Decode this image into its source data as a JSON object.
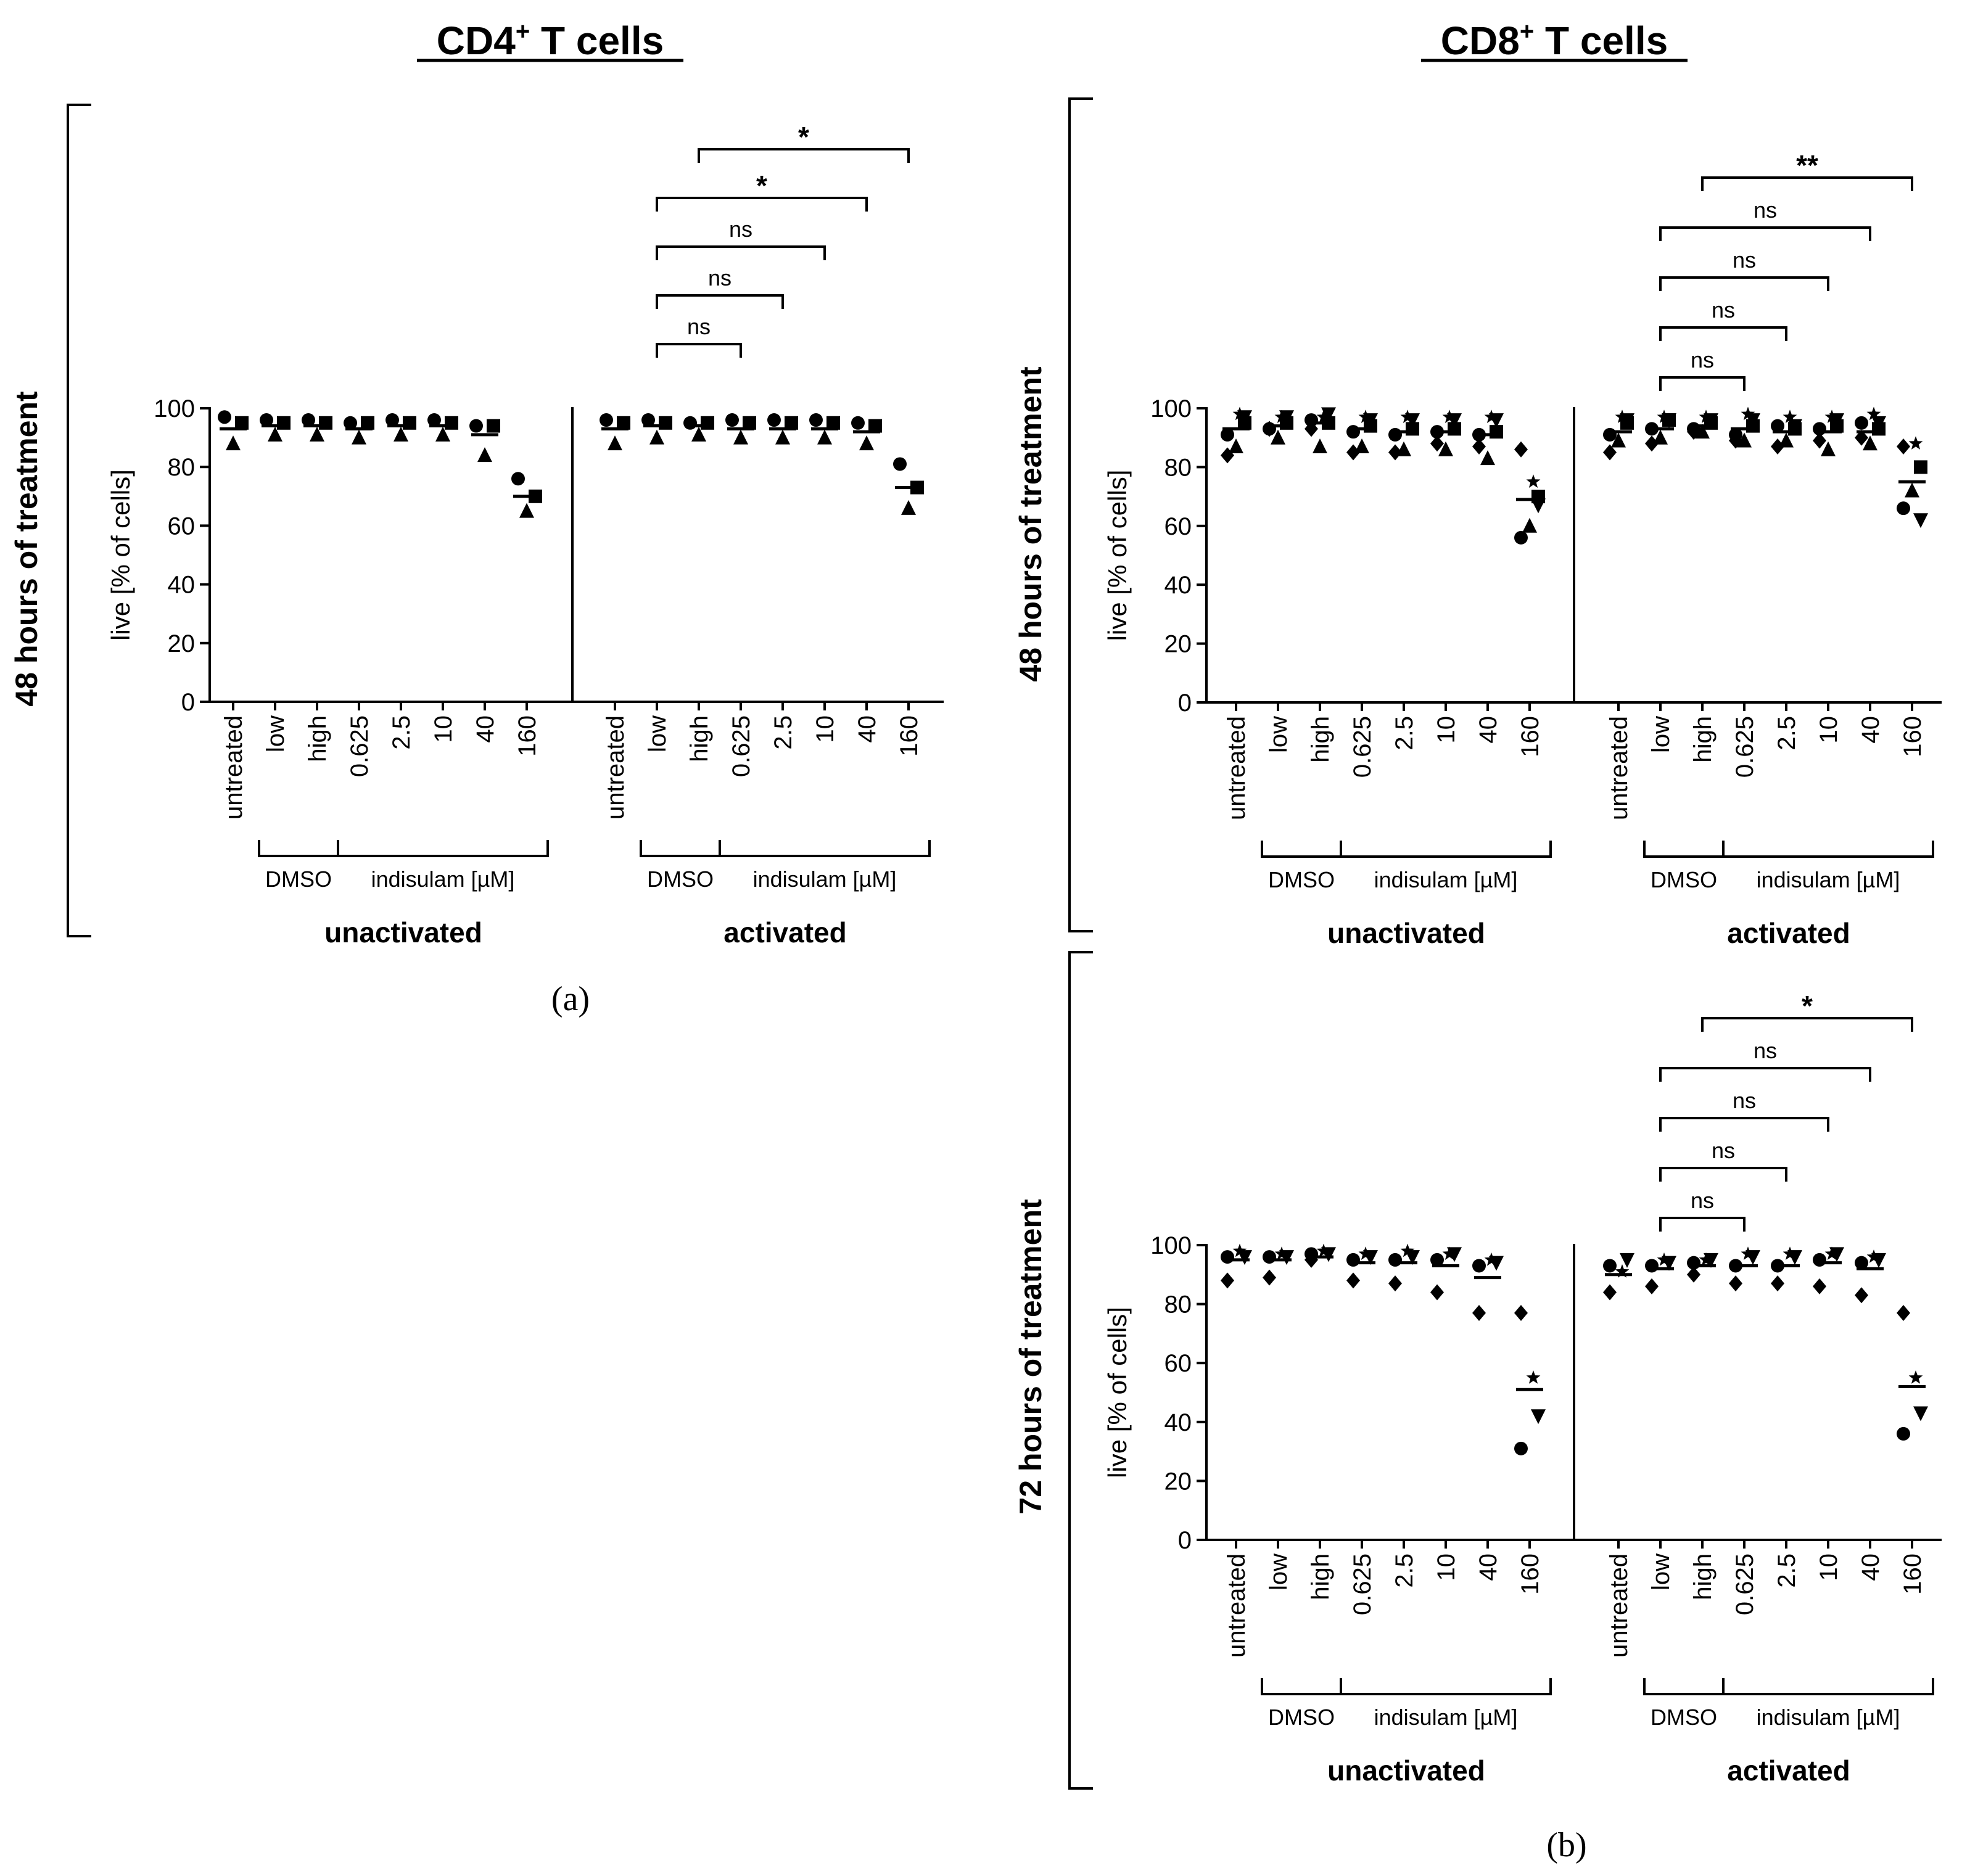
{
  "figure": {
    "colors": {
      "ink": "#000000",
      "background": "#ffffff"
    },
    "column_titles": [
      {
        "main": "CD4",
        "sup": "+",
        "rest": " T cells"
      },
      {
        "main": "CD8",
        "sup": "+",
        "rest": " T cells"
      }
    ],
    "panel_labels": [
      "(a)",
      "(b)"
    ],
    "row_labels": [
      "48 hours of treatment",
      "48 hours of treatment",
      "72 hours of treatment"
    ]
  },
  "chart_data": [
    {
      "id": "cd4-48h",
      "type": "scatter",
      "title": "CD4+ T cells",
      "time_label": "48 hours of treatment",
      "ylabel": "live [% of cells]",
      "ylim": [
        0,
        100
      ],
      "yticks": [
        "0",
        "20",
        "40",
        "60",
        "80",
        "100"
      ],
      "categories": [
        "untreated",
        "low",
        "high",
        "0.625",
        "2.5",
        "10",
        "40",
        "160"
      ],
      "bracket_labels": {
        "dmso": "DMSO",
        "indisulam": "indisulam [µM]"
      },
      "groups": [
        {
          "name": "unactivated",
          "series": [
            {
              "name": "circle",
              "values": [
                97,
                96,
                96,
                95,
                96,
                96,
                94,
                76
              ]
            },
            {
              "name": "square",
              "values": [
                95,
                95,
                95,
                95,
                95,
                95,
                94,
                70
              ]
            },
            {
              "name": "triangle",
              "values": [
                88,
                91,
                91,
                90,
                91,
                91,
                84,
                65
              ]
            }
          ],
          "means": [
            93,
            94,
            94,
            93,
            94,
            94,
            91,
            70
          ]
        },
        {
          "name": "activated",
          "series": [
            {
              "name": "circle",
              "values": [
                96,
                96,
                95,
                96,
                96,
                96,
                95,
                81
              ]
            },
            {
              "name": "square",
              "values": [
                95,
                95,
                95,
                95,
                95,
                95,
                94,
                73
              ]
            },
            {
              "name": "triangle",
              "values": [
                88,
                90,
                91,
                90,
                90,
                90,
                88,
                66
              ]
            }
          ],
          "means": [
            93,
            94,
            94,
            93,
            93,
            93,
            92,
            73
          ]
        }
      ],
      "comparisons": [
        {
          "from": "low",
          "to": "0.625",
          "label": "ns"
        },
        {
          "from": "low",
          "to": "2.5",
          "label": "ns"
        },
        {
          "from": "low",
          "to": "10",
          "label": "ns"
        },
        {
          "from": "low",
          "to": "40",
          "label": "*"
        },
        {
          "from": "high",
          "to": "160",
          "label": "*"
        }
      ]
    },
    {
      "id": "cd8-48h",
      "type": "scatter",
      "title": "CD8+ T cells",
      "time_label": "48 hours of treatment",
      "ylabel": "live [% of cells]",
      "ylim": [
        0,
        100
      ],
      "yticks": [
        "0",
        "20",
        "40",
        "60",
        "80",
        "100"
      ],
      "categories": [
        "untreated",
        "low",
        "high",
        "0.625",
        "2.5",
        "10",
        "40",
        "160"
      ],
      "bracket_labels": {
        "dmso": "DMSO",
        "indisulam": "indisulam [µM]"
      },
      "groups": [
        {
          "name": "unactivated",
          "series": [
            {
              "name": "circle",
              "values": [
                91,
                93,
                96,
                92,
                91,
                92,
                91,
                56
              ]
            },
            {
              "name": "square",
              "values": [
                95,
                95,
                95,
                94,
                93,
                93,
                92,
                70
              ]
            },
            {
              "name": "triangle",
              "values": [
                87,
                90,
                87,
                87,
                86,
                86,
                83,
                60
              ]
            },
            {
              "name": "triangle-down",
              "values": [
                97,
                97,
                98,
                96,
                96,
                96,
                96,
                67
              ]
            },
            {
              "name": "diamond",
              "values": [
                84,
                93,
                93,
                85,
                85,
                88,
                87,
                86
              ]
            },
            {
              "name": "star",
              "values": [
                98,
                97,
                97,
                97,
                97,
                97,
                97,
                75
              ]
            }
          ],
          "means": [
            93,
            94,
            95,
            93,
            92,
            92,
            91,
            69
          ]
        },
        {
          "name": "activated",
          "series": [
            {
              "name": "circle",
              "values": [
                91,
                93,
                93,
                91,
                94,
                93,
                95,
                66
              ]
            },
            {
              "name": "square",
              "values": [
                95,
                96,
                95,
                94,
                93,
                94,
                93,
                80
              ]
            },
            {
              "name": "triangle",
              "values": [
                89,
                90,
                92,
                89,
                89,
                86,
                88,
                72
              ]
            },
            {
              "name": "triangle-down",
              "values": [
                96,
                96,
                96,
                96,
                94,
                96,
                95,
                62
              ]
            },
            {
              "name": "diamond",
              "values": [
                85,
                88,
                92,
                89,
                87,
                89,
                90,
                87
              ]
            },
            {
              "name": "star",
              "values": [
                97,
                97,
                97,
                98,
                97,
                97,
                98,
                88
              ]
            }
          ],
          "means": [
            92,
            93,
            94,
            93,
            92,
            92,
            92,
            75
          ]
        }
      ],
      "comparisons": [
        {
          "from": "low",
          "to": "0.625",
          "label": "ns"
        },
        {
          "from": "low",
          "to": "2.5",
          "label": "ns"
        },
        {
          "from": "low",
          "to": "10",
          "label": "ns"
        },
        {
          "from": "low",
          "to": "40",
          "label": "ns"
        },
        {
          "from": "high",
          "to": "160",
          "label": "**"
        }
      ]
    },
    {
      "id": "cd8-72h",
      "type": "scatter",
      "title": "CD8+ T cells",
      "time_label": "72 hours of treatment",
      "ylabel": "live [% of cells]",
      "ylim": [
        0,
        100
      ],
      "yticks": [
        "0",
        "20",
        "40",
        "60",
        "80",
        "100"
      ],
      "categories": [
        "untreated",
        "low",
        "high",
        "0.625",
        "2.5",
        "10",
        "40",
        "160"
      ],
      "bracket_labels": {
        "dmso": "DMSO",
        "indisulam": "indisulam [µM]"
      },
      "groups": [
        {
          "name": "unactivated",
          "series": [
            {
              "name": "circle",
              "values": [
                96,
                96,
                97,
                95,
                95,
                95,
                93,
                31
              ]
            },
            {
              "name": "triangle-down",
              "values": [
                96,
                96,
                97,
                96,
                96,
                97,
                94,
                42
              ]
            },
            {
              "name": "diamond",
              "values": [
                88,
                89,
                95,
                88,
                87,
                84,
                77,
                77
              ]
            },
            {
              "name": "star",
              "values": [
                98,
                97,
                98,
                97,
                98,
                97,
                95,
                55
              ]
            }
          ],
          "means": [
            95,
            95,
            96,
            94,
            94,
            93,
            89,
            51
          ]
        },
        {
          "name": "activated",
          "series": [
            {
              "name": "circle",
              "values": [
                93,
                93,
                94,
                93,
                93,
                95,
                94,
                36
              ]
            },
            {
              "name": "triangle-down",
              "values": [
                95,
                94,
                95,
                96,
                96,
                97,
                95,
                43
              ]
            },
            {
              "name": "diamond",
              "values": [
                84,
                86,
                90,
                87,
                87,
                86,
                83,
                77
              ]
            },
            {
              "name": "star",
              "values": [
                91,
                95,
                95,
                97,
                97,
                97,
                96,
                55
              ]
            }
          ],
          "means": [
            90,
            92,
            93,
            93,
            93,
            94,
            92,
            52
          ]
        }
      ],
      "comparisons": [
        {
          "from": "low",
          "to": "0.625",
          "label": "ns"
        },
        {
          "from": "low",
          "to": "2.5",
          "label": "ns"
        },
        {
          "from": "low",
          "to": "10",
          "label": "ns"
        },
        {
          "from": "low",
          "to": "40",
          "label": "ns"
        },
        {
          "from": "high",
          "to": "160",
          "label": "*"
        }
      ]
    }
  ]
}
